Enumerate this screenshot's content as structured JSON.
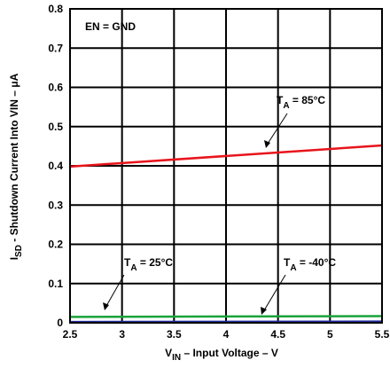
{
  "chart_data": {
    "type": "line",
    "xlabel": {
      "main": "V",
      "sub": "IN",
      "rest": " – Input Voltage – V"
    },
    "ylabel": {
      "main": "I",
      "sub": "SD",
      "rest": " - Shutdown Current Into VIN – μA"
    },
    "xlim": [
      2.5,
      5.5
    ],
    "ylim": [
      0,
      0.8
    ],
    "x_ticks": [
      "2.5",
      "3",
      "3.5",
      "4",
      "4.5",
      "5",
      "5.5"
    ],
    "y_ticks": [
      "0",
      "0.1",
      "0.2",
      "0.3",
      "0.4",
      "0.5",
      "0.6",
      "0.7",
      "0.8"
    ],
    "grid": true,
    "annotations": {
      "condition": "EN = GND"
    },
    "series": [
      {
        "name": "T_A = 85°C",
        "label_main": "T",
        "label_sub": "A",
        "label_rest": " = 85°C",
        "color": "#e8141b",
        "x": [
          2.5,
          5.5
        ],
        "y": [
          0.398,
          0.452
        ]
      },
      {
        "name": "T_A = 25°C",
        "label_main": "T",
        "label_sub": "A",
        "label_rest": " = 25°C",
        "color": "#1aa33a",
        "x": [
          2.5,
          5.5
        ],
        "y": [
          0.015,
          0.017
        ]
      },
      {
        "name": "T_A = -40°C",
        "label_main": "T",
        "label_sub": "A",
        "label_rest": " = -40°C",
        "color": "#1f2aa0",
        "x": [
          2.5,
          5.5
        ],
        "y": [
          0.002,
          0.003
        ]
      }
    ]
  }
}
